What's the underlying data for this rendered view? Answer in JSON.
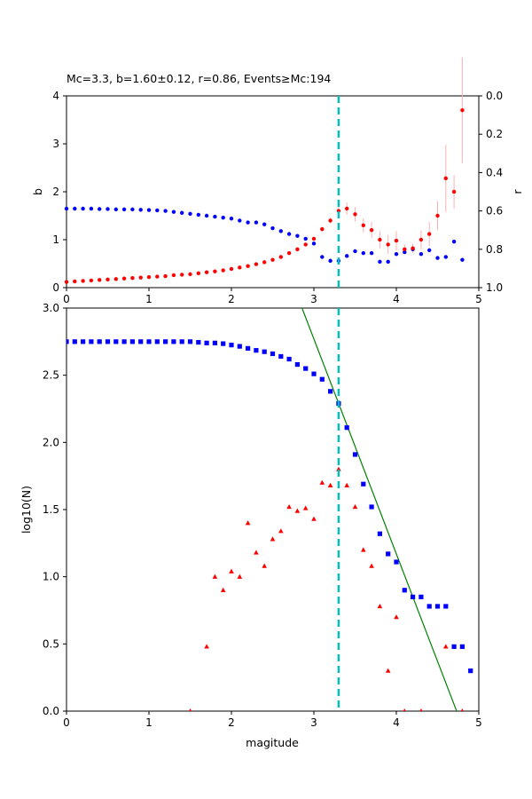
{
  "chart_data": [
    {
      "type": "scatter",
      "title": "Mc=3.3, b=1.60±0.12, r=0.86, Events≥Mc:194",
      "xlabel": "",
      "ylabel": "b",
      "y2label": "r",
      "xlim": [
        0,
        5
      ],
      "ylim": [
        0,
        4
      ],
      "y2lim": [
        1.0,
        0.0
      ],
      "x_ticks": [
        "0",
        "1",
        "2",
        "3",
        "4",
        "5"
      ],
      "y_ticks": [
        "0",
        "1",
        "2",
        "3",
        "4"
      ],
      "y2_ticks": [
        "0.0",
        "0.2",
        "0.4",
        "0.6",
        "0.8",
        "1.0"
      ],
      "mc_line": 3.3,
      "colors": {
        "b": "#ff0000",
        "r": "#0000ff",
        "mc": "#00bfbf",
        "err": "#ffb0b0"
      },
      "series": [
        {
          "axis": "left",
          "marker": "circle",
          "x": [
            0.0,
            0.1,
            0.2,
            0.3,
            0.4,
            0.5,
            0.6,
            0.7,
            0.8,
            0.9,
            1.0,
            1.1,
            1.2,
            1.3,
            1.4,
            1.5,
            1.6,
            1.7,
            1.8,
            1.9,
            2.0,
            2.1,
            2.2,
            2.3,
            2.4,
            2.5,
            2.6,
            2.7,
            2.8,
            2.9,
            3.0,
            3.1,
            3.2,
            3.3,
            3.4,
            3.5,
            3.6,
            3.7,
            3.8,
            3.9,
            4.0,
            4.1,
            4.2,
            4.3,
            4.4,
            4.5,
            4.6,
            4.7,
            4.8
          ],
          "y": [
            0.12,
            0.13,
            0.14,
            0.15,
            0.16,
            0.17,
            0.18,
            0.19,
            0.2,
            0.21,
            0.22,
            0.23,
            0.24,
            0.26,
            0.27,
            0.28,
            0.3,
            0.32,
            0.34,
            0.36,
            0.39,
            0.42,
            0.45,
            0.49,
            0.53,
            0.58,
            0.64,
            0.72,
            0.8,
            0.9,
            1.02,
            1.22,
            1.4,
            1.6,
            1.65,
            1.53,
            1.3,
            1.2,
            1.0,
            0.9,
            0.98,
            0.8,
            0.82,
            1.0,
            1.12,
            1.5,
            2.28,
            2.0,
            3.7
          ],
          "err": [
            0,
            0,
            0,
            0,
            0,
            0,
            0,
            0,
            0,
            0,
            0,
            0,
            0,
            0,
            0,
            0,
            0,
            0,
            0,
            0,
            0,
            0,
            0,
            0,
            0,
            0,
            0,
            0,
            0,
            0,
            0.03,
            0.05,
            0.06,
            0.12,
            0.13,
            0.15,
            0.15,
            0.17,
            0.18,
            0.2,
            0.2,
            0.1,
            0.1,
            0.2,
            0.25,
            0.3,
            0.7,
            0.35,
            1.1
          ]
        },
        {
          "axis": "right",
          "marker": "circle",
          "x": [
            0.0,
            0.1,
            0.2,
            0.3,
            0.4,
            0.5,
            0.6,
            0.7,
            0.8,
            0.9,
            1.0,
            1.1,
            1.2,
            1.3,
            1.4,
            1.5,
            1.6,
            1.7,
            1.8,
            1.9,
            2.0,
            2.1,
            2.2,
            2.3,
            2.4,
            2.5,
            2.6,
            2.7,
            2.8,
            2.9,
            3.0,
            3.1,
            3.2,
            3.3,
            3.4,
            3.5,
            3.6,
            3.7,
            3.8,
            3.9,
            4.0,
            4.1,
            4.2,
            4.3,
            4.4,
            4.5,
            4.6,
            4.7,
            4.8
          ],
          "y": [
            0.588,
            0.588,
            0.588,
            0.588,
            0.59,
            0.59,
            0.592,
            0.592,
            0.592,
            0.594,
            0.595,
            0.597,
            0.6,
            0.605,
            0.61,
            0.615,
            0.62,
            0.625,
            0.63,
            0.635,
            0.64,
            0.65,
            0.66,
            0.66,
            0.67,
            0.69,
            0.705,
            0.72,
            0.73,
            0.745,
            0.77,
            0.84,
            0.86,
            0.86,
            0.835,
            0.81,
            0.82,
            0.82,
            0.865,
            0.865,
            0.825,
            0.815,
            0.8,
            0.825,
            0.805,
            0.845,
            0.84,
            0.76,
            0.855
          ]
        }
      ]
    },
    {
      "type": "scatter",
      "title": "",
      "xlabel": "magitude",
      "ylabel": "log10(N)",
      "xlim": [
        0,
        5
      ],
      "ylim": [
        0,
        3.0
      ],
      "x_ticks": [
        "0",
        "1",
        "2",
        "3",
        "4",
        "5"
      ],
      "y_ticks": [
        "0.0",
        "0.5",
        "1.0",
        "1.5",
        "2.0",
        "2.5",
        "3.0"
      ],
      "mc_line": 3.3,
      "fit_line": {
        "b": 1.6,
        "mc": 3.3,
        "y_at_mc": 2.29,
        "color": "#008000"
      },
      "colors": {
        "cumulative": "#0000ff",
        "incremental": "#ff0000"
      },
      "series": [
        {
          "marker": "square",
          "x": [
            0.0,
            0.1,
            0.2,
            0.3,
            0.4,
            0.5,
            0.6,
            0.7,
            0.8,
            0.9,
            1.0,
            1.1,
            1.2,
            1.3,
            1.4,
            1.5,
            1.6,
            1.7,
            1.8,
            1.9,
            2.0,
            2.1,
            2.2,
            2.3,
            2.4,
            2.5,
            2.6,
            2.7,
            2.8,
            2.9,
            3.0,
            3.1,
            3.2,
            3.3,
            3.4,
            3.5,
            3.6,
            3.7,
            3.8,
            3.9,
            4.0,
            4.1,
            4.2,
            4.3,
            4.4,
            4.5,
            4.6,
            4.7,
            4.8,
            4.9
          ],
          "y": [
            2.75,
            2.75,
            2.75,
            2.75,
            2.75,
            2.75,
            2.75,
            2.75,
            2.75,
            2.75,
            2.75,
            2.75,
            2.75,
            2.75,
            2.75,
            2.75,
            2.745,
            2.74,
            2.74,
            2.735,
            2.725,
            2.715,
            2.7,
            2.685,
            2.675,
            2.66,
            2.64,
            2.62,
            2.58,
            2.55,
            2.51,
            2.47,
            2.38,
            2.29,
            2.11,
            1.91,
            1.69,
            1.52,
            1.32,
            1.17,
            1.11,
            0.9,
            0.85,
            0.85,
            0.78,
            0.78,
            0.78,
            0.48,
            0.48,
            0.3
          ]
        },
        {
          "marker": "triangle",
          "x": [
            1.5,
            1.7,
            1.8,
            1.9,
            2.0,
            2.1,
            2.2,
            2.3,
            2.4,
            2.5,
            2.6,
            2.7,
            2.8,
            2.9,
            3.0,
            3.1,
            3.2,
            3.3,
            3.4,
            3.5,
            3.6,
            3.7,
            3.8,
            3.9,
            4.0,
            4.1,
            4.3,
            4.6,
            4.8
          ],
          "y": [
            0.0,
            0.48,
            1.0,
            0.9,
            1.04,
            1.0,
            1.4,
            1.18,
            1.08,
            1.28,
            1.34,
            1.52,
            1.49,
            1.51,
            1.43,
            1.7,
            1.68,
            1.8,
            1.68,
            1.52,
            1.2,
            1.08,
            0.78,
            0.3,
            0.7,
            0.0,
            0.0,
            0.48,
            0.0
          ]
        }
      ]
    }
  ]
}
